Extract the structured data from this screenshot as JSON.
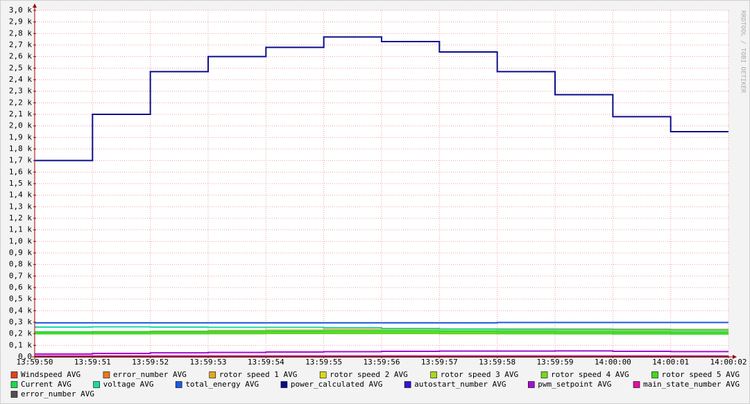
{
  "chart_data": {
    "type": "step",
    "watermark": "RRDTOOL / TOBI OETIKER",
    "x": [
      "13:59:50",
      "13:59:51",
      "13:59:52",
      "13:59:53",
      "13:59:54",
      "13:59:55",
      "13:59:56",
      "13:59:57",
      "13:59:58",
      "13:59:59",
      "14:00:00",
      "14:00:01"
    ],
    "xlim": [
      "13:59:50",
      "14:00:02"
    ],
    "xticks": [
      "13:59:50",
      "13:59:51",
      "13:59:52",
      "13:59:53",
      "13:59:54",
      "13:59:55",
      "13:59:56",
      "13:59:57",
      "13:59:58",
      "13:59:59",
      "14:00:00",
      "14:00:01",
      "14:00:02"
    ],
    "ylim": [
      0,
      3000
    ],
    "yticks": [
      {
        "value": 0,
        "label": "0,0"
      },
      {
        "value": 100,
        "label": "0,1 k"
      },
      {
        "value": 200,
        "label": "0,2 k"
      },
      {
        "value": 300,
        "label": "0,3 k"
      },
      {
        "value": 400,
        "label": "0,4 k"
      },
      {
        "value": 500,
        "label": "0,5 k"
      },
      {
        "value": 600,
        "label": "0,6 k"
      },
      {
        "value": 700,
        "label": "0,7 k"
      },
      {
        "value": 800,
        "label": "0,8 k"
      },
      {
        "value": 900,
        "label": "0,9 k"
      },
      {
        "value": 1000,
        "label": "1,0 k"
      },
      {
        "value": 1100,
        "label": "1,1 k"
      },
      {
        "value": 1200,
        "label": "1,2 k"
      },
      {
        "value": 1300,
        "label": "1,3 k"
      },
      {
        "value": 1400,
        "label": "1,4 k"
      },
      {
        "value": 1500,
        "label": "1,5 k"
      },
      {
        "value": 1600,
        "label": "1,6 k"
      },
      {
        "value": 1700,
        "label": "1,7 k"
      },
      {
        "value": 1800,
        "label": "1,8 k"
      },
      {
        "value": 1900,
        "label": "1,9 k"
      },
      {
        "value": 2000,
        "label": "2,0 k"
      },
      {
        "value": 2100,
        "label": "2,1 k"
      },
      {
        "value": 2200,
        "label": "2,2 k"
      },
      {
        "value": 2300,
        "label": "2,3 k"
      },
      {
        "value": 2400,
        "label": "2,4 k"
      },
      {
        "value": 2500,
        "label": "2,5 k"
      },
      {
        "value": 2600,
        "label": "2,6 k"
      },
      {
        "value": 2700,
        "label": "2,7 k"
      },
      {
        "value": 2800,
        "label": "2,8 k"
      },
      {
        "value": 2900,
        "label": "2,9 k"
      },
      {
        "value": 3000,
        "label": "3,0 k"
      }
    ],
    "grid": true,
    "series": [
      {
        "name": "Windspeed AVG",
        "color": "#e0421e",
        "values": [
          5,
          5,
          5,
          5,
          5,
          5,
          5,
          5,
          5,
          5,
          5,
          5
        ]
      },
      {
        "name": "error_number AVG",
        "color": "#e8781e",
        "values": [
          0,
          0,
          0,
          0,
          0,
          0,
          0,
          0,
          0,
          0,
          0,
          0
        ]
      },
      {
        "name": "rotor speed 1 AVG",
        "color": "#e0a81e",
        "values": [
          215,
          218,
          222,
          228,
          232,
          236,
          238,
          240,
          242,
          242,
          240,
          238
        ]
      },
      {
        "name": "rotor speed 2 AVG",
        "color": "#d8d81e",
        "values": [
          212,
          214,
          218,
          222,
          225,
          228,
          230,
          230,
          230,
          230,
          228,
          226
        ]
      },
      {
        "name": "rotor speed 3 AVG",
        "color": "#a8d81e",
        "values": [
          208,
          210,
          212,
          214,
          216,
          218,
          218,
          218,
          216,
          214,
          212,
          210
        ]
      },
      {
        "name": "rotor speed 4 AVG",
        "color": "#78d81e",
        "values": [
          204,
          205,
          206,
          207,
          208,
          208,
          208,
          207,
          206,
          205,
          204,
          203
        ]
      },
      {
        "name": "rotor speed 5 AVG",
        "color": "#42d81e",
        "values": [
          200,
          200,
          201,
          202,
          203,
          203,
          203,
          202,
          201,
          200,
          199,
          198
        ]
      },
      {
        "name": "Current AVG",
        "color": "#1ed84e",
        "values": [
          215,
          216,
          218,
          220,
          222,
          224,
          224,
          222,
          220,
          218,
          216,
          214
        ]
      },
      {
        "name": "voltage AVG",
        "color": "#1ed8a8",
        "values": [
          258,
          260,
          258,
          256,
          256,
          252,
          246,
          242,
          238,
          236,
          234,
          232
        ]
      },
      {
        "name": "total_energy AVG",
        "color": "#1e5ae0",
        "values": [
          295,
          295,
          295,
          295,
          295,
          295,
          295,
          295,
          298,
          298,
          298,
          298
        ]
      },
      {
        "name": "power_calculated AVG",
        "color": "#0c0c8c",
        "values": [
          1700,
          2100,
          2470,
          2600,
          2680,
          2770,
          2730,
          2640,
          2470,
          2270,
          2080,
          1950
        ]
      },
      {
        "name": "autostart_number AVG",
        "color": "#3a10d0",
        "values": [
          0,
          0,
          0,
          0,
          0,
          0,
          0,
          0,
          0,
          0,
          0,
          0
        ]
      },
      {
        "name": "pwm_setpoint AVG",
        "color": "#a010d0",
        "values": [
          25,
          30,
          35,
          38,
          42,
          45,
          48,
          50,
          50,
          52,
          48,
          46
        ]
      },
      {
        "name": "main_state_number AVG",
        "color": "#e010a0",
        "values": [
          8,
          8,
          8,
          8,
          8,
          8,
          8,
          8,
          8,
          8,
          8,
          8
        ]
      },
      {
        "name": "error_number AVG",
        "color": "#505050",
        "values": [
          0,
          0,
          0,
          0,
          0,
          0,
          0,
          0,
          0,
          0,
          0,
          0
        ]
      }
    ]
  }
}
